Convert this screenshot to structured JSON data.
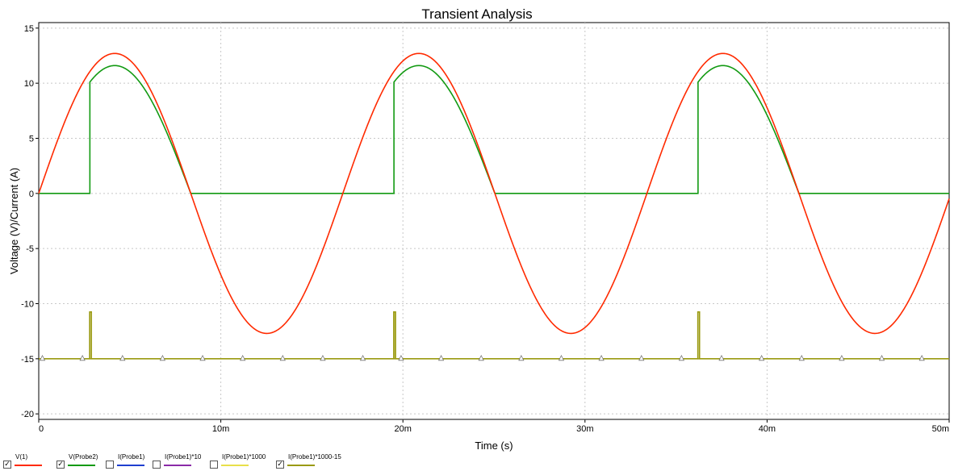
{
  "chart_data": {
    "type": "line",
    "title": "Transient Analysis",
    "xlabel": "Time (s)",
    "ylabel": "Voltage (V)/Current (A)",
    "xlim": [
      0,
      0.05
    ],
    "ylim": [
      -20.5,
      15.5
    ],
    "x_ticks": [
      {
        "value": 0,
        "label": "0"
      },
      {
        "value": 0.01,
        "label": "10m"
      },
      {
        "value": 0.02,
        "label": "20m"
      },
      {
        "value": 0.03,
        "label": "30m"
      },
      {
        "value": 0.04,
        "label": "40m"
      },
      {
        "value": 0.05,
        "label": "50m"
      }
    ],
    "y_ticks": [
      {
        "value": 15,
        "label": "15"
      },
      {
        "value": 10,
        "label": "10"
      },
      {
        "value": 5,
        "label": "5"
      },
      {
        "value": 0,
        "label": "0"
      },
      {
        "value": -5,
        "label": "-5"
      },
      {
        "value": -10,
        "label": "-10"
      },
      {
        "value": -15,
        "label": "-15"
      },
      {
        "value": -20,
        "label": "-20"
      }
    ],
    "grid": true,
    "legend_position": "bottom",
    "series": [
      {
        "name": "V(1)",
        "color": "#ff2a00",
        "checked": true,
        "kind": "sine",
        "amplitude": 12.7,
        "period": 0.0167,
        "x": [
          0,
          0.00418,
          0.00835,
          0.0125,
          0.0167,
          0.0209,
          0.025,
          0.0292,
          0.0334,
          0.0376,
          0.0418,
          0.0459,
          0.05
        ],
        "y": [
          0,
          12.7,
          0,
          -12.7,
          0,
          12.7,
          0,
          -12.7,
          0,
          12.7,
          0,
          -12.7,
          0
        ]
      },
      {
        "name": "V(Probe2)",
        "color": "#129a12",
        "checked": true,
        "kind": "halfwave",
        "amplitude": 11.6,
        "period": 0.0167,
        "x": [
          0,
          0.0028,
          0.0028,
          0.0042,
          0.0082,
          0.0195,
          0.0195,
          0.0209,
          0.0249,
          0.0362,
          0.0362,
          0.0376,
          0.0416,
          0.05
        ],
        "y": [
          0,
          0,
          10.1,
          11.6,
          0,
          0,
          10.1,
          11.6,
          0,
          0,
          10.1,
          11.6,
          0,
          0
        ]
      },
      {
        "name": "I(Probe1)",
        "color": "#1f3fcf",
        "checked": false
      },
      {
        "name": "I(Probe1)*10",
        "color": "#8a2aa8",
        "checked": false
      },
      {
        "name": "I(Probe1)*1000",
        "color": "#e8e04a",
        "checked": false
      },
      {
        "name": "I(Probe1)*1000-15",
        "color": "#9a9a10",
        "checked": true,
        "kind": "pulses",
        "baseline": -15,
        "peak": -10.75,
        "pulse_x": [
          0.0028,
          0.0195,
          0.0362
        ],
        "pulse_width": 9e-05,
        "marker": "triangle",
        "marker_x": [
          0.0002,
          0.0024,
          0.0046,
          0.0068,
          0.009,
          0.0112,
          0.0134,
          0.0156,
          0.0178,
          0.0199,
          0.0221,
          0.0243,
          0.0265,
          0.0287,
          0.0309,
          0.0331,
          0.0353,
          0.0375,
          0.0397,
          0.0419,
          0.0441,
          0.0463,
          0.0485
        ]
      }
    ]
  }
}
